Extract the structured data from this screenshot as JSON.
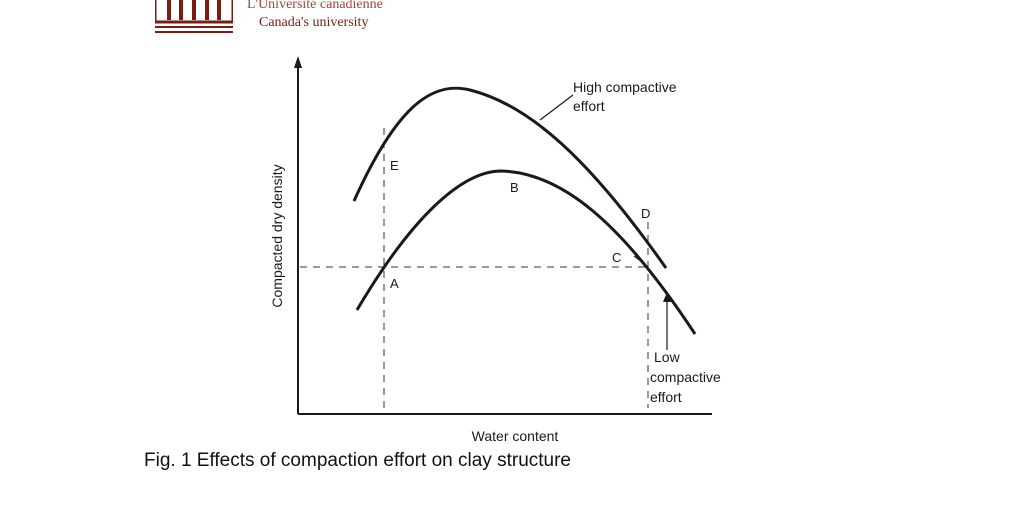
{
  "logo": {
    "french_text": "L'Université canadienne",
    "english_text": "Canada's university"
  },
  "diagram": {
    "y_axis_label": "Compacted dry density",
    "x_axis_label": "Water content",
    "high_curve_label_line1": "High compactive",
    "high_curve_label_line2": "effort",
    "low_curve_label_line1": "Low",
    "low_curve_label_line2": "compactive",
    "low_curve_label_line3": "effort",
    "point_a": "A",
    "point_b": "B",
    "point_c": "C",
    "point_d": "D",
    "point_e": "E"
  },
  "caption": "Fig. 1 Effects of compaction effort on clay structure",
  "colors": {
    "ink": "#1a1a1a",
    "logo": "#7a1c14"
  }
}
